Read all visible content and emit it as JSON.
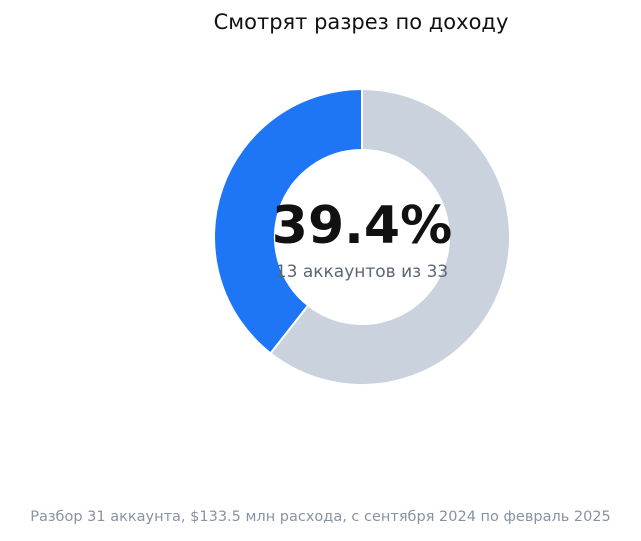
{
  "chart_data": {
    "type": "pie",
    "title": "Смотрят разрез по доходу",
    "center_value": "39.4%",
    "center_label": "13 аккаунтов из 33",
    "categories": [
      "",
      ""
    ],
    "values": [
      39.4,
      60.6
    ],
    "colors": [
      "#1e75f5",
      "#c9d2dd"
    ]
  },
  "footer": "Разбор 31 аккаунта, $133.5 млн расхода, с сентября 2024 по февраль 2025"
}
